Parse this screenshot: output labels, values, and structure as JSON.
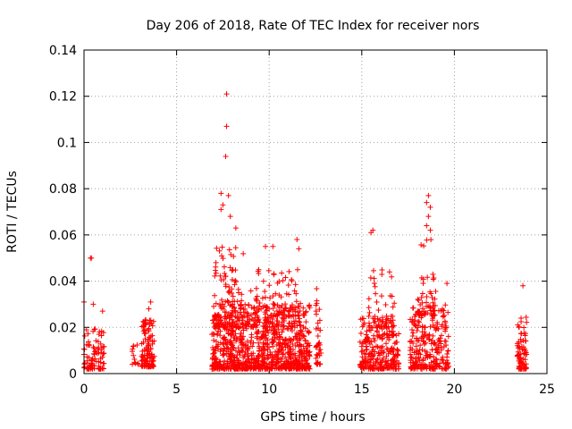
{
  "chart_data": {
    "type": "scatter",
    "title": "Day 206 of 2018, Rate Of TEC Index for receiver nors",
    "xlabel": "GPS time / hours",
    "ylabel": "ROTI / TECUs",
    "xlim": [
      0,
      25
    ],
    "ylim": [
      0,
      0.14
    ],
    "x_ticks": [
      "0",
      "5",
      "10",
      "15",
      "20",
      "25"
    ],
    "y_ticks": [
      "0",
      "0.02",
      "0.04",
      "0.06",
      "0.08",
      "0.1",
      "0.12",
      "0.14"
    ],
    "grid": true,
    "marker": "+",
    "color": "#ff0000",
    "series": [
      {
        "clusters": [
          {
            "x_range": [
              0.0,
              1.1
            ],
            "y_range": [
              0.002,
              0.02
            ],
            "count": 90
          },
          {
            "x_range": [
              2.6,
              3.0
            ],
            "y_range": [
              0.004,
              0.013
            ],
            "count": 12
          },
          {
            "x_range": [
              3.1,
              3.8
            ],
            "y_range": [
              0.003,
              0.024
            ],
            "count": 120
          },
          {
            "x_range": [
              6.9,
              12.2
            ],
            "y_range": [
              0.002,
              0.03
            ],
            "count": 900
          },
          {
            "x_range": [
              7.0,
              8.6
            ],
            "y_range": [
              0.02,
              0.055
            ],
            "count": 120
          },
          {
            "x_range": [
              9.0,
              11.7
            ],
            "y_range": [
              0.02,
              0.045
            ],
            "count": 100
          },
          {
            "x_range": [
              12.5,
              12.8
            ],
            "y_range": [
              0.004,
              0.038
            ],
            "count": 40
          },
          {
            "x_range": [
              14.9,
              17.0
            ],
            "y_range": [
              0.002,
              0.025
            ],
            "count": 260
          },
          {
            "x_range": [
              15.3,
              16.8
            ],
            "y_range": [
              0.02,
              0.045
            ],
            "count": 40
          },
          {
            "x_range": [
              17.6,
              19.7
            ],
            "y_range": [
              0.002,
              0.03
            ],
            "count": 260
          },
          {
            "x_range": [
              18.0,
              19.0
            ],
            "y_range": [
              0.025,
              0.058
            ],
            "count": 50
          },
          {
            "x_range": [
              23.4,
              23.9
            ],
            "y_range": [
              0.002,
              0.025
            ],
            "count": 80
          }
        ],
        "points": [
          [
            0.0,
            0.031
          ],
          [
            0.35,
            0.05
          ],
          [
            0.4,
            0.05
          ],
          [
            0.5,
            0.03
          ],
          [
            1.0,
            0.027
          ],
          [
            3.6,
            0.031
          ],
          [
            3.5,
            0.028
          ],
          [
            7.4,
            0.078
          ],
          [
            7.5,
            0.073
          ],
          [
            7.4,
            0.071
          ],
          [
            7.7,
            0.121
          ],
          [
            7.7,
            0.107
          ],
          [
            7.65,
            0.094
          ],
          [
            7.8,
            0.077
          ],
          [
            7.9,
            0.068
          ],
          [
            8.2,
            0.063
          ],
          [
            9.8,
            0.055
          ],
          [
            10.2,
            0.055
          ],
          [
            11.5,
            0.058
          ],
          [
            11.6,
            0.054
          ],
          [
            15.5,
            0.061
          ],
          [
            15.6,
            0.062
          ],
          [
            16.5,
            0.044
          ],
          [
            18.6,
            0.077
          ],
          [
            18.5,
            0.074
          ],
          [
            18.7,
            0.072
          ],
          [
            18.6,
            0.068
          ],
          [
            18.5,
            0.064
          ],
          [
            18.7,
            0.062
          ],
          [
            19.6,
            0.039
          ],
          [
            23.7,
            0.038
          ]
        ]
      }
    ]
  }
}
